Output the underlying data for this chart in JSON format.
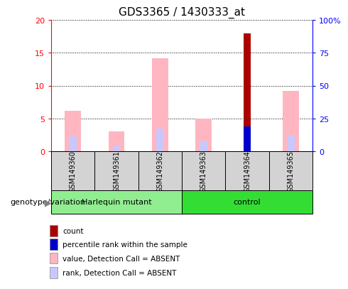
{
  "title": "GDS3365 / 1430333_at",
  "samples": [
    "GSM149360",
    "GSM149361",
    "GSM149362",
    "GSM149363",
    "GSM149364",
    "GSM149365"
  ],
  "group_labels": [
    "Harlequin mutant",
    "control"
  ],
  "group_ranges": [
    [
      0,
      3
    ],
    [
      3,
      6
    ]
  ],
  "group_colors": [
    "#90EE90",
    "#33DD33"
  ],
  "bar_width": 0.35,
  "value_absent": [
    6.2,
    3.0,
    14.2,
    5.0,
    null,
    9.2
  ],
  "rank_absent": [
    2.3,
    0.9,
    3.5,
    1.5,
    null,
    2.4
  ],
  "count": [
    null,
    null,
    null,
    null,
    18.0,
    null
  ],
  "percentile_rank": [
    null,
    null,
    null,
    null,
    3.8,
    null
  ],
  "ylim_left": [
    0,
    20
  ],
  "ylim_right": [
    0,
    100
  ],
  "yticks_left": [
    0,
    5,
    10,
    15,
    20
  ],
  "yticks_right": [
    0,
    25,
    50,
    75,
    100
  ],
  "ytick_labels_right": [
    "0",
    "25",
    "50",
    "75",
    "100%"
  ],
  "color_count": "#AA0000",
  "color_percentile": "#0000CC",
  "color_value_absent": "#FFB6C1",
  "color_rank_absent": "#C8C8FF",
  "genotype_label": "genotype/variation",
  "legend_items": [
    {
      "label": "count",
      "color": "#AA0000"
    },
    {
      "label": "percentile rank within the sample",
      "color": "#0000CC"
    },
    {
      "label": "value, Detection Call = ABSENT",
      "color": "#FFB6C1"
    },
    {
      "label": "rank, Detection Call = ABSENT",
      "color": "#C8C8FF"
    }
  ]
}
